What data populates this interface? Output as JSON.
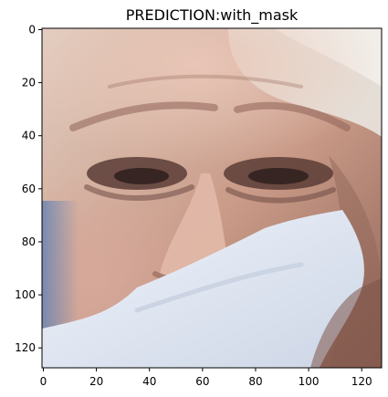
{
  "figure": {
    "title": "PREDICTION:with_mask"
  },
  "axes": {
    "x_ticks": [
      "0",
      "20",
      "40",
      "60",
      "80",
      "100",
      "120"
    ],
    "y_ticks": [
      "0",
      "20",
      "40",
      "60",
      "80",
      "100",
      "120"
    ],
    "xlim": [
      -0.5,
      127.5
    ],
    "ylim": [
      127.5,
      -0.5
    ],
    "grid": false
  },
  "image": {
    "subject": "close-up face photo with white face mask",
    "resolution": [
      128,
      128
    ],
    "colors": {
      "skin": "#c99a87",
      "skin_light": "#e2b9a8",
      "skin_shadow": "#8e6357",
      "hair": "#e7e1da",
      "mask": "#e6ecf4",
      "mask_shadow": "#c7d0e0",
      "background_left": "#6e86b2"
    }
  }
}
